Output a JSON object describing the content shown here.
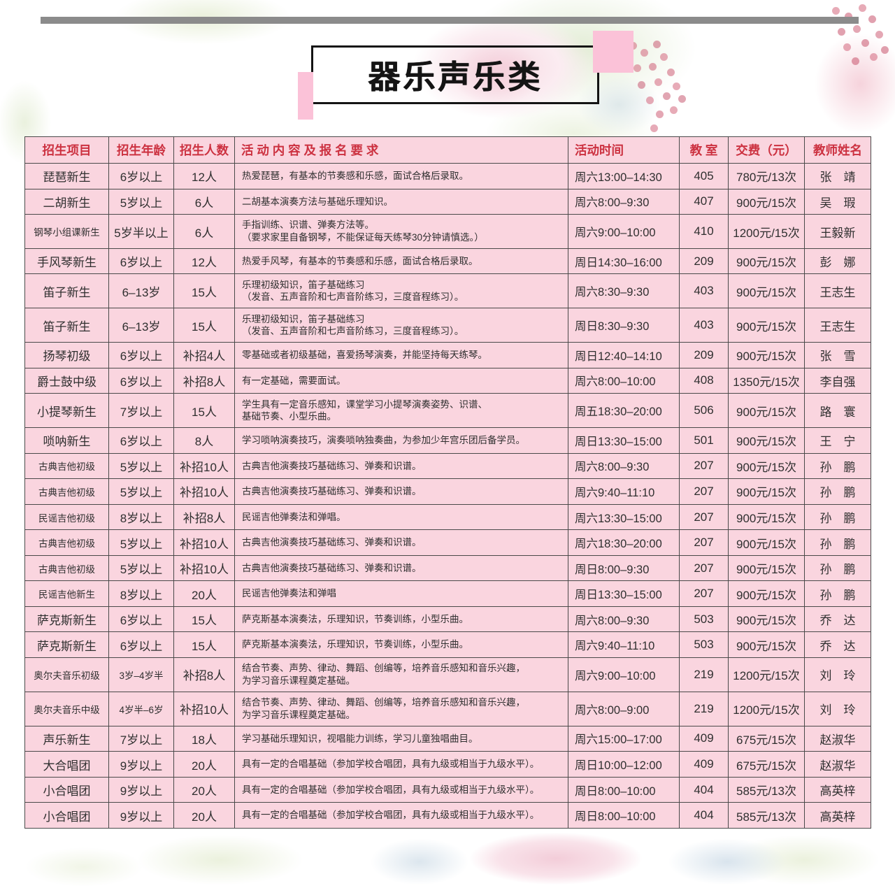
{
  "title": "器乐声乐类",
  "colors": {
    "cell_bg": "#fad5df",
    "header_red": "#cc3140",
    "grid": "#4a4a4a",
    "bar_gray": "#8b8b8b",
    "pink_accent": "#fbc2d8",
    "title_ink": "#141414"
  },
  "table": {
    "headers": {
      "project": "招生项目",
      "age": "招生年龄",
      "count": "招生人数",
      "desc": "活 动 内 容 及 报 名 要 求",
      "time": "活动时间",
      "room": "教  室",
      "fee": "交费（元）",
      "teacher": "教师姓名"
    },
    "rows": [
      {
        "project": "琵琶新生",
        "age": "6岁以上",
        "count": "12人",
        "desc": "热爱琵琶，有基本的节奏感和乐感，面试合格后录取。",
        "time": "周六13:00–14:30",
        "room": "405",
        "fee": "780元/13次",
        "teacher": "张　靖"
      },
      {
        "project": "二胡新生",
        "age": "5岁以上",
        "count": "6人",
        "desc": "二胡基本演奏方法与基础乐理知识。",
        "time": "周六8:00–9:30",
        "room": "407",
        "fee": "900元/15次",
        "teacher": "吴　瑕"
      },
      {
        "project": "钢琴小组课新生",
        "age": "5岁半以上",
        "count": "6人",
        "desc": "手指训练、识谱、弹奏方法等。\n（要求家里自备钢琴，不能保证每天练琴30分钟请慎选。）",
        "time": "周六9:00–10:00",
        "room": "410",
        "fee": "1200元/15次",
        "teacher": "王毅新"
      },
      {
        "project": "手风琴新生",
        "age": "6岁以上",
        "count": "12人",
        "desc": "热爱手风琴，有基本的节奏感和乐感，面试合格后录取。",
        "time": "周日14:30–16:00",
        "room": "209",
        "fee": "900元/15次",
        "teacher": "彭　娜"
      },
      {
        "project": "笛子新生",
        "age": "6–13岁",
        "count": "15人",
        "desc": "乐理初级知识，笛子基础练习\n（发音、五声音阶和七声音阶练习，三度音程练习）。",
        "time": "周六8:30–9:30",
        "room": "403",
        "fee": "900元/15次",
        "teacher": "王志生"
      },
      {
        "project": "笛子新生",
        "age": "6–13岁",
        "count": "15人",
        "desc": "乐理初级知识，笛子基础练习\n（发音、五声音阶和七声音阶练习，三度音程练习）。",
        "time": "周日8:30–9:30",
        "room": "403",
        "fee": "900元/15次",
        "teacher": "王志生"
      },
      {
        "project": "扬琴初级",
        "age": "6岁以上",
        "count": "补招4人",
        "desc": "零基础或者初级基础，喜爱扬琴演奏，并能坚持每天练琴。",
        "time": "周日12:40–14:10",
        "room": "209",
        "fee": "900元/15次",
        "teacher": "张　雪"
      },
      {
        "project": "爵士鼓中级",
        "age": "6岁以上",
        "count": "补招8人",
        "desc": "有一定基础，需要面试。",
        "time": "周六8:00–10:00",
        "room": "408",
        "fee": "1350元/15次",
        "teacher": "李自强"
      },
      {
        "project": "小提琴新生",
        "age": "7岁以上",
        "count": "15人",
        "desc": "学生具有一定音乐感知，课堂学习小提琴演奏姿势、识谱、\n基础节奏、小型乐曲。",
        "time": "周五18:30–20:00",
        "room": "506",
        "fee": "900元/15次",
        "teacher": "路　寰"
      },
      {
        "project": "唢呐新生",
        "age": "6岁以上",
        "count": "8人",
        "desc": "学习唢呐演奏技巧，演奏唢呐独奏曲，为参加少年宫乐团后备学员。",
        "time": "周日13:30–15:00",
        "room": "501",
        "fee": "900元/15次",
        "teacher": "王　宁"
      },
      {
        "project": "古典吉他初级",
        "age": "5岁以上",
        "count": "补招10人",
        "desc": "古典吉他演奏技巧基础练习、弹奏和识谱。",
        "time": "周六8:00–9:30",
        "room": "207",
        "fee": "900元/15次",
        "teacher": "孙　鹏"
      },
      {
        "project": "古典吉他初级",
        "age": "5岁以上",
        "count": "补招10人",
        "desc": "古典吉他演奏技巧基础练习、弹奏和识谱。",
        "time": "周六9:40–11:10",
        "room": "207",
        "fee": "900元/15次",
        "teacher": "孙　鹏"
      },
      {
        "project": "民谣吉他初级",
        "age": "8岁以上",
        "count": "补招8人",
        "desc": "民谣吉他弹奏法和弹唱。",
        "time": "周六13:30–15:00",
        "room": "207",
        "fee": "900元/15次",
        "teacher": "孙　鹏"
      },
      {
        "project": "古典吉他初级",
        "age": "5岁以上",
        "count": "补招10人",
        "desc": "古典吉他演奏技巧基础练习、弹奏和识谱。",
        "time": "周六18:30–20:00",
        "room": "207",
        "fee": "900元/15次",
        "teacher": "孙　鹏"
      },
      {
        "project": "古典吉他初级",
        "age": "5岁以上",
        "count": "补招10人",
        "desc": "古典吉他演奏技巧基础练习、弹奏和识谱。",
        "time": "周日8:00–9:30",
        "room": "207",
        "fee": "900元/15次",
        "teacher": "孙　鹏"
      },
      {
        "project": "民谣吉他新生",
        "age": "8岁以上",
        "count": "20人",
        "desc": "民谣吉他弹奏法和弹唱",
        "time": "周日13:30–15:00",
        "room": "207",
        "fee": "900元/15次",
        "teacher": "孙　鹏"
      },
      {
        "project": "萨克斯新生",
        "age": "6岁以上",
        "count": "15人",
        "desc": "萨克斯基本演奏法，乐理知识，节奏训练，小型乐曲。",
        "time": "周六8:00–9:30",
        "room": "503",
        "fee": "900元/15次",
        "teacher": "乔　达"
      },
      {
        "project": "萨克斯新生",
        "age": "6岁以上",
        "count": "15人",
        "desc": "萨克斯基本演奏法，乐理知识，节奏训练，小型乐曲。",
        "time": "周六9:40–11:10",
        "room": "503",
        "fee": "900元/15次",
        "teacher": "乔　达"
      },
      {
        "project": "奥尔夫音乐初级",
        "age": "3岁–4岁半",
        "count": "补招8人",
        "desc": "结合节奏、声势、律动、舞蹈、创编等，培养音乐感知和音乐兴趣，\n为学习音乐课程奠定基础。",
        "time": "周六9:00–10:00",
        "room": "219",
        "fee": "1200元/15次",
        "teacher": "刘　玲"
      },
      {
        "project": "奥尔夫音乐中级",
        "age": "4岁半–6岁",
        "count": "补招10人",
        "desc": "结合节奏、声势、律动、舞蹈、创编等，培养音乐感知和音乐兴趣，\n为学习音乐课程奠定基础。",
        "time": "周六8:00–9:00",
        "room": "219",
        "fee": "1200元/15次",
        "teacher": "刘　玲"
      },
      {
        "project": "声乐新生",
        "age": "7岁以上",
        "count": "18人",
        "desc": "学习基础乐理知识，视唱能力训练，学习儿童独唱曲目。",
        "time": "周六15:00–17:00",
        "room": "409",
        "fee": "675元/15次",
        "teacher": "赵淑华"
      },
      {
        "project": "大合唱团",
        "age": "9岁以上",
        "count": "20人",
        "desc": "具有一定的合唱基础（参加学校合唱团，具有九级或相当于九级水平）。",
        "time": "周日10:00–12:00",
        "room": "409",
        "fee": "675元/15次",
        "teacher": "赵淑华"
      },
      {
        "project": "小合唱团",
        "age": "9岁以上",
        "count": "20人",
        "desc": "具有一定的合唱基础（参加学校合唱团，具有九级或相当于九级水平）。",
        "time": "周日8:00–10:00",
        "room": "404",
        "fee": "585元/13次",
        "teacher": "高英梓"
      },
      {
        "project": "小合唱团",
        "age": "9岁以上",
        "count": "20人",
        "desc": "具有一定的合唱基础（参加学校合唱团，具有九级或相当于九级水平）。",
        "time": "周日8:00–10:00",
        "room": "404",
        "fee": "585元/13次",
        "teacher": "高英梓"
      }
    ]
  }
}
